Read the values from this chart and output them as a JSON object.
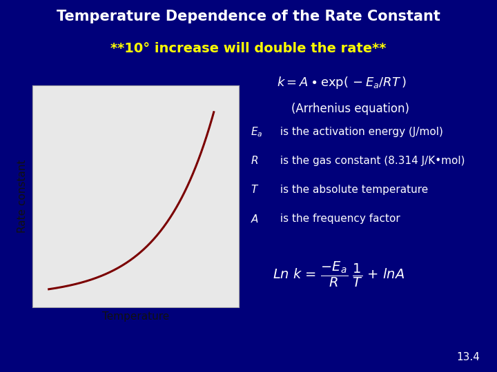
{
  "title_line1": "Temperature Dependence of the Rate Constant",
  "title_line2": "**10° increase will double the rate**",
  "bg_color": "#00007a",
  "title_color": "#ffffff",
  "subtitle_color": "#ffff00",
  "arrhenius_label": "(Arrhenius equation)",
  "desc1_sym": "$E_a$",
  "desc1_txt": " is the activation energy (J/mol)",
  "desc2_sym": "$R$",
  "desc2_txt": " is the gas constant (8.314 J/K•mol)",
  "desc3_sym": "$T$",
  "desc3_txt": " is the absolute temperature",
  "desc4_sym": "$A$",
  "desc4_txt": " is the frequency factor",
  "slide_num": "13.4",
  "plot_bg": "#e8e8e8",
  "curve_color": "#7b0000",
  "xlabel": "Temperature",
  "ylabel": "Rate constant",
  "box_bg": "#3a2040",
  "box_border": "#b8860b"
}
